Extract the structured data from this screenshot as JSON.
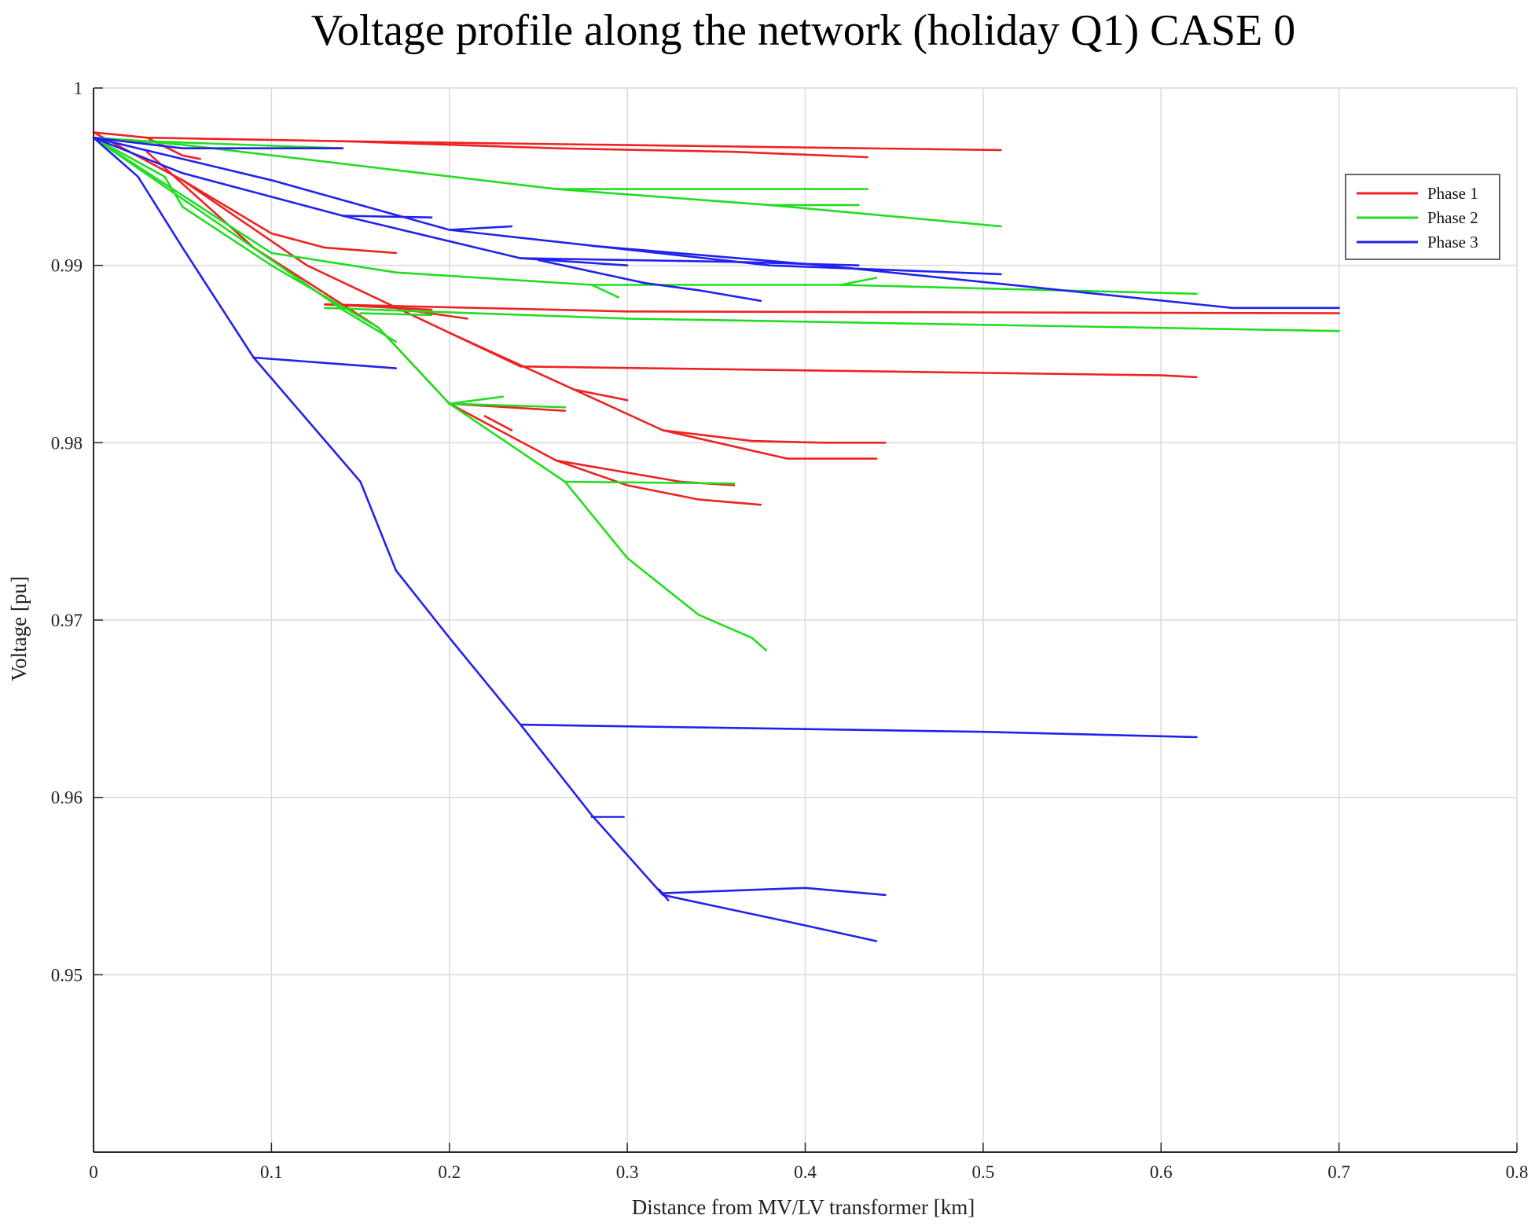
{
  "chart_data": {
    "type": "line",
    "title": "Voltage profile along the network (holiday Q1) CASE 0",
    "xlabel": "Distance from MV/LV transformer [km]",
    "ylabel": "Voltage [pu]",
    "xlim": [
      0,
      0.8
    ],
    "ylim": [
      0.94,
      1.0
    ],
    "xticks": [
      0,
      0.1,
      0.2,
      0.3,
      0.4,
      0.5,
      0.6,
      0.7,
      0.8
    ],
    "xtick_labels": [
      "0",
      "0.1",
      "0.2",
      "0.3",
      "0.4",
      "0.5",
      "0.6",
      "0.7",
      "0.8"
    ],
    "yticks": [
      0.95,
      0.96,
      0.97,
      0.98,
      0.99,
      1.0
    ],
    "ytick_labels": [
      "0.95",
      "0.96",
      "0.97",
      "0.98",
      "0.99",
      "1"
    ],
    "grid": true,
    "legend_position": "top-right",
    "series": [
      {
        "name": "Phase 1",
        "color": "#ee2222",
        "branches": [
          [
            [
              0,
              0.9975
            ],
            [
              0.03,
              0.9972
            ],
            [
              0.14,
              0.997
            ],
            [
              0.26,
              0.9966
            ],
            [
              0.36,
              0.9964
            ],
            [
              0.435,
              0.9961
            ]
          ],
          [
            [
              0.14,
              0.997
            ],
            [
              0.51,
              0.9965
            ]
          ],
          [
            [
              0.03,
              0.9972
            ],
            [
              0.05,
              0.9962
            ],
            [
              0.06,
              0.996
            ]
          ],
          [
            [
              0,
              0.9975
            ],
            [
              0.05,
              0.9948
            ],
            [
              0.1,
              0.9918
            ],
            [
              0.13,
              0.991
            ],
            [
              0.17,
              0.9907
            ]
          ],
          [
            [
              0.05,
              0.9948
            ],
            [
              0.12,
              0.99
            ],
            [
              0.2,
              0.9862
            ],
            [
              0.24,
              0.9843
            ],
            [
              0.6,
              0.9838
            ],
            [
              0.62,
              0.9837
            ]
          ],
          [
            [
              0.2,
              0.9862
            ],
            [
              0.27,
              0.983
            ],
            [
              0.32,
              0.9807
            ],
            [
              0.37,
              0.9801
            ],
            [
              0.41,
              0.98
            ],
            [
              0.445,
              0.98
            ]
          ],
          [
            [
              0.32,
              0.9807
            ],
            [
              0.39,
              0.9791
            ],
            [
              0.44,
              0.9791
            ]
          ],
          [
            [
              0.27,
              0.983
            ],
            [
              0.3,
              0.9824
            ]
          ],
          [
            [
              0.13,
              0.9878
            ],
            [
              0.3,
              0.9874
            ],
            [
              0.7,
              0.9873
            ]
          ],
          [
            [
              0.13,
              0.9878
            ],
            [
              0.19,
              0.9875
            ]
          ],
          [
            [
              0.175,
              0.9875
            ],
            [
              0.21,
              0.987
            ]
          ],
          [
            [
              0.03,
              0.9964
            ],
            [
              0.09,
              0.991
            ],
            [
              0.16,
              0.9865
            ],
            [
              0.2,
              0.9822
            ],
            [
              0.26,
              0.979
            ],
            [
              0.33,
              0.9778
            ]
          ],
          [
            [
              0.2,
              0.9822
            ],
            [
              0.265,
              0.9818
            ]
          ],
          [
            [
              0.22,
              0.9815
            ],
            [
              0.235,
              0.9807
            ]
          ],
          [
            [
              0.26,
              0.979
            ],
            [
              0.3,
              0.9776
            ],
            [
              0.34,
              0.9768
            ],
            [
              0.375,
              0.9765
            ]
          ],
          [
            [
              0.33,
              0.9778
            ],
            [
              0.36,
              0.9776
            ]
          ]
        ]
      },
      {
        "name": "Phase 2",
        "color": "#22dd22",
        "branches": [
          [
            [
              0,
              0.9972
            ],
            [
              0.03,
              0.997
            ],
            [
              0.14,
              0.9966
            ]
          ],
          [
            [
              0,
              0.9972
            ],
            [
              0.05,
              0.9968
            ],
            [
              0.26,
              0.9943
            ],
            [
              0.435,
              0.9943
            ]
          ],
          [
            [
              0.26,
              0.9943
            ],
            [
              0.38,
              0.9934
            ],
            [
              0.51,
              0.9922
            ]
          ],
          [
            [
              0.38,
              0.9934
            ],
            [
              0.43,
              0.9934
            ]
          ],
          [
            [
              0,
              0.9972
            ],
            [
              0.1,
              0.9907
            ],
            [
              0.17,
              0.9896
            ],
            [
              0.28,
              0.9889
            ],
            [
              0.42,
              0.9889
            ],
            [
              0.62,
              0.9884
            ]
          ],
          [
            [
              0.28,
              0.9889
            ],
            [
              0.295,
              0.9882
            ]
          ],
          [
            [
              0.42,
              0.9889
            ],
            [
              0.44,
              0.9893
            ]
          ],
          [
            [
              0.13,
              0.9876
            ],
            [
              0.3,
              0.987
            ],
            [
              0.7,
              0.9863
            ]
          ],
          [
            [
              0.15,
              0.9873
            ],
            [
              0.19,
              0.9872
            ]
          ],
          [
            [
              0,
              0.9972
            ],
            [
              0.1,
              0.9903
            ],
            [
              0.14,
              0.9875
            ],
            [
              0.17,
              0.9857
            ]
          ],
          [
            [
              0,
              0.9972
            ],
            [
              0.04,
              0.995
            ],
            [
              0.05,
              0.9933
            ],
            [
              0.1,
              0.99
            ],
            [
              0.16,
              0.9865
            ],
            [
              0.2,
              0.9822
            ],
            [
              0.265,
              0.9778
            ],
            [
              0.3,
              0.9735
            ],
            [
              0.34,
              0.9703
            ],
            [
              0.37,
              0.969
            ],
            [
              0.378,
              0.9683
            ]
          ],
          [
            [
              0.2,
              0.9822
            ],
            [
              0.23,
              0.9826
            ]
          ],
          [
            [
              0.2,
              0.9822
            ],
            [
              0.265,
              0.982
            ]
          ],
          [
            [
              0.265,
              0.9778
            ],
            [
              0.36,
              0.9777
            ]
          ]
        ]
      },
      {
        "name": "Phase 3",
        "color": "#2222ee",
        "branches": [
          [
            [
              0,
              0.9972
            ],
            [
              0.05,
              0.9966
            ],
            [
              0.14,
              0.9966
            ]
          ],
          [
            [
              0,
              0.9972
            ],
            [
              0.1,
              0.9948
            ],
            [
              0.2,
              0.992
            ],
            [
              0.38,
              0.99
            ],
            [
              0.51,
              0.9895
            ]
          ],
          [
            [
              0.2,
              0.992
            ],
            [
              0.235,
              0.9922
            ]
          ],
          [
            [
              0.28,
              0.9911
            ],
            [
              0.41,
              0.99
            ],
            [
              0.64,
              0.9876
            ],
            [
              0.7,
              0.9876
            ]
          ],
          [
            [
              0.14,
              0.9928
            ],
            [
              0.19,
              0.9927
            ]
          ],
          [
            [
              0,
              0.9972
            ],
            [
              0.05,
              0.9952
            ],
            [
              0.14,
              0.9928
            ],
            [
              0.24,
              0.9904
            ],
            [
              0.36,
              0.9902
            ],
            [
              0.43,
              0.99
            ]
          ],
          [
            [
              0.24,
              0.9904
            ],
            [
              0.3,
              0.99
            ]
          ],
          [
            [
              0.25,
              0.9903
            ],
            [
              0.31,
              0.989
            ],
            [
              0.34,
              0.9886
            ],
            [
              0.375,
              0.988
            ]
          ],
          [
            [
              0,
              0.9972
            ],
            [
              0.025,
              0.995
            ],
            [
              0.05,
              0.991
            ],
            [
              0.09,
              0.9848
            ],
            [
              0.15,
              0.9778
            ],
            [
              0.17,
              0.9728
            ],
            [
              0.2,
              0.969
            ],
            [
              0.24,
              0.9641
            ],
            [
              0.28,
              0.959
            ],
            [
              0.32,
              0.9545
            ],
            [
              0.39,
              0.953
            ],
            [
              0.44,
              0.9519
            ]
          ],
          [
            [
              0.09,
              0.9848
            ],
            [
              0.13,
              0.9845
            ],
            [
              0.17,
              0.9842
            ]
          ],
          [
            [
              0.24,
              0.9641
            ],
            [
              0.5,
              0.9637
            ],
            [
              0.62,
              0.9634
            ]
          ],
          [
            [
              0.28,
              0.9589
            ],
            [
              0.298,
              0.9589
            ]
          ],
          [
            [
              0.32,
              0.9546
            ],
            [
              0.4,
              0.9549
            ],
            [
              0.445,
              0.9545
            ]
          ],
          [
            [
              0.318,
              0.9548
            ],
            [
              0.323,
              0.9542
            ]
          ]
        ]
      }
    ]
  }
}
